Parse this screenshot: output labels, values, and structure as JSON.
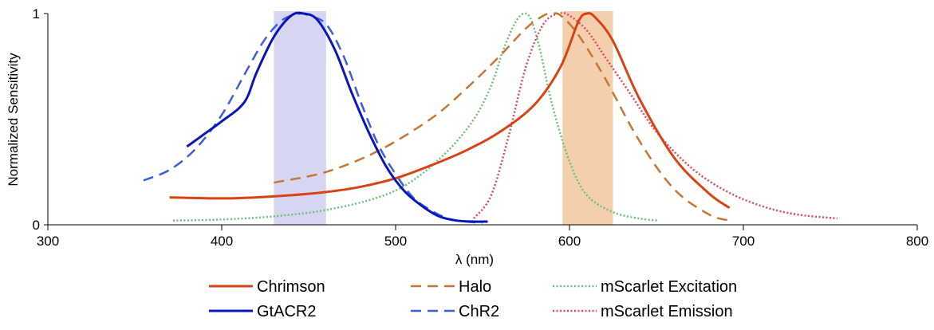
{
  "chart_data": {
    "type": "line",
    "xlabel": "λ (nm)",
    "ylabel": "Normalized Sensitivity",
    "xlim": [
      300,
      800
    ],
    "ylim": [
      0,
      1
    ],
    "x_ticks": [
      300,
      400,
      500,
      600,
      700,
      800
    ],
    "x_tick_labels": [
      "300",
      "400",
      "500",
      "600",
      "700",
      "800"
    ],
    "y_ticks": [
      0,
      1
    ],
    "y_tick_labels": [
      "0",
      "1"
    ],
    "legend_position": "bottom",
    "bands": [
      {
        "x0": 430,
        "x1": 460,
        "color": "#d6d6f2"
      },
      {
        "x0": 596,
        "x1": 625,
        "color": "#f4cfae"
      }
    ],
    "series": [
      {
        "name": "Chrimson",
        "color": "#d84315",
        "dash": "solid",
        "width": 3,
        "x": [
          370,
          400,
          420,
          440,
          460,
          480,
          500,
          520,
          540,
          560,
          580,
          595,
          605,
          610,
          615,
          625,
          640,
          660,
          680,
          692
        ],
        "y": [
          0.13,
          0.125,
          0.13,
          0.14,
          0.155,
          0.18,
          0.22,
          0.28,
          0.35,
          0.44,
          0.57,
          0.75,
          0.96,
          1.0,
          0.98,
          0.87,
          0.6,
          0.32,
          0.15,
          0.08
        ]
      },
      {
        "name": "GtACR2",
        "color": "#0a16b8",
        "dash": "solid",
        "width": 3,
        "x": [
          380,
          390,
          400,
          413,
          420,
          430,
          440,
          447,
          455,
          465,
          475,
          485,
          495,
          505,
          515,
          525,
          535,
          545,
          553
        ],
        "y": [
          0.37,
          0.43,
          0.49,
          0.58,
          0.72,
          0.89,
          0.99,
          1.0,
          0.97,
          0.83,
          0.62,
          0.43,
          0.27,
          0.16,
          0.09,
          0.04,
          0.02,
          0.015,
          0.015
        ]
      },
      {
        "name": "Halo",
        "color": "#c87533",
        "dash": "dashed",
        "width": 2.5,
        "x": [
          430,
          460,
          490,
          520,
          540,
          560,
          575,
          585,
          590,
          595,
          605,
          620,
          640,
          660,
          680,
          692
        ],
        "y": [
          0.2,
          0.25,
          0.35,
          0.5,
          0.64,
          0.8,
          0.93,
          0.99,
          1.0,
          0.99,
          0.9,
          0.7,
          0.4,
          0.17,
          0.05,
          0.02
        ]
      },
      {
        "name": "ChR2",
        "color": "#3c5ed8",
        "dash": "dashed",
        "width": 2.5,
        "x": [
          355,
          370,
          385,
          400,
          415,
          425,
          435,
          445,
          450,
          460,
          470,
          480,
          490,
          500,
          510,
          520,
          530,
          540,
          550
        ],
        "y": [
          0.21,
          0.26,
          0.36,
          0.52,
          0.74,
          0.88,
          0.97,
          1.0,
          0.99,
          0.95,
          0.8,
          0.58,
          0.38,
          0.24,
          0.13,
          0.07,
          0.03,
          0.015,
          0.01
        ]
      },
      {
        "name": "mScarlet Excitation",
        "color": "#6cc07e",
        "dash": "dotted",
        "width": 2.5,
        "x": [
          372,
          400,
          430,
          460,
          490,
          510,
          530,
          545,
          555,
          562,
          569,
          574,
          578,
          583,
          590,
          600,
          610,
          625,
          640,
          651
        ],
        "y": [
          0.02,
          0.025,
          0.04,
          0.07,
          0.13,
          0.21,
          0.35,
          0.5,
          0.66,
          0.83,
          0.96,
          1.0,
          0.97,
          0.83,
          0.57,
          0.3,
          0.14,
          0.06,
          0.03,
          0.02
        ]
      },
      {
        "name": "mScarlet Emission",
        "color": "#e0485a",
        "dash": "dotted",
        "width": 2.5,
        "x": [
          545,
          555,
          565,
          575,
          585,
          594,
          600,
          610,
          620,
          635,
          650,
          670,
          690,
          710,
          730,
          754
        ],
        "y": [
          0.03,
          0.14,
          0.42,
          0.75,
          0.95,
          1.0,
          0.99,
          0.92,
          0.8,
          0.62,
          0.44,
          0.27,
          0.16,
          0.09,
          0.05,
          0.03
        ]
      }
    ]
  }
}
